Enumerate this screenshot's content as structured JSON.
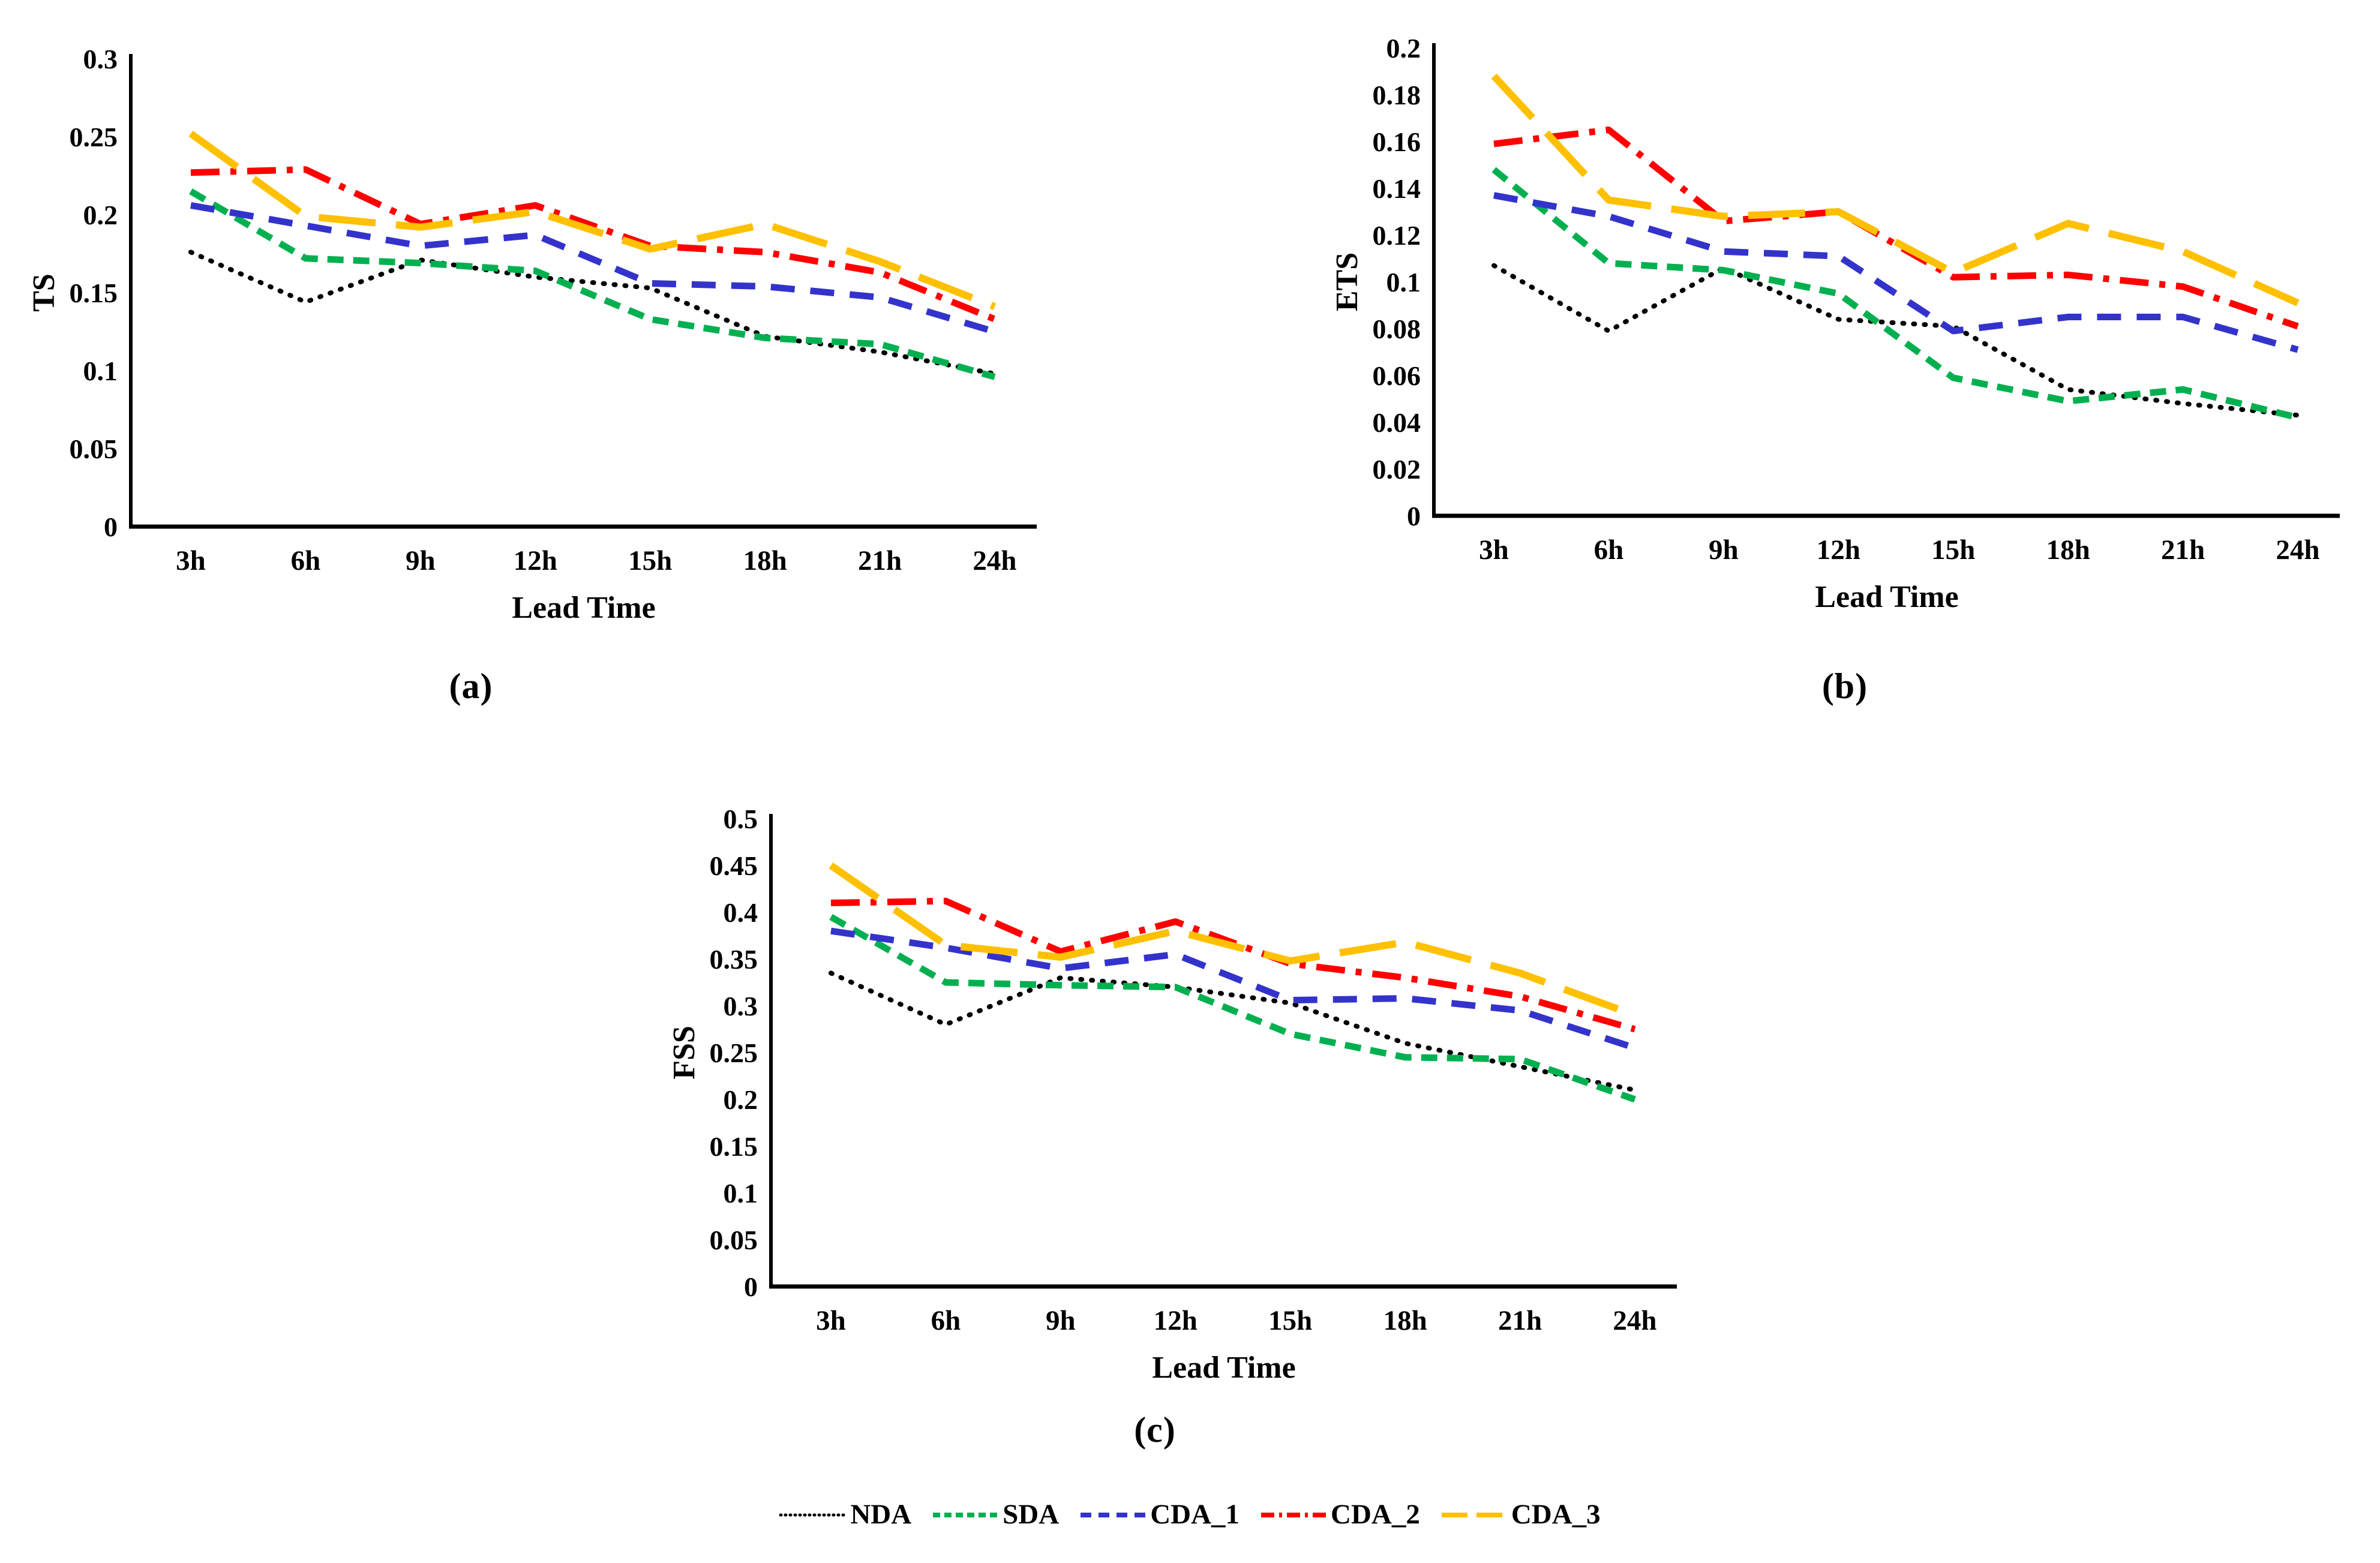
{
  "figure": {
    "background": "#FFFFFF",
    "panel_labels": [
      "(a)",
      "(b)",
      "(c)"
    ],
    "legend": [
      {
        "label": "NDA",
        "color": "#000000",
        "line_style": "dotted"
      },
      {
        "label": "SDA",
        "color": "#00B050",
        "line_style": "dash_short"
      },
      {
        "label": "CDA_1",
        "color": "#3333CC",
        "line_style": "dash_medium"
      },
      {
        "label": "CDA_2",
        "color": "#FF0000",
        "line_style": "dash_dot"
      },
      {
        "label": "CDA_3",
        "color": "#FFC000",
        "line_style": "dash_long"
      }
    ]
  },
  "chart_data": [
    {
      "type": "line",
      "panel": "a",
      "title": "",
      "xlabel": "Lead Time",
      "ylabel": "TS",
      "ylim": [
        0,
        0.3
      ],
      "ytick_step": 0.05,
      "grid": false,
      "legend_position": "bottom-shared",
      "categories": [
        "3h",
        "6h",
        "9h",
        "12h",
        "15h",
        "18h",
        "21h",
        "24h"
      ],
      "series": [
        {
          "name": "NDA",
          "color": "#000000",
          "line_style": "dotted",
          "values": [
            0.176,
            0.144,
            0.171,
            0.16,
            0.153,
            0.122,
            0.112,
            0.098
          ]
        },
        {
          "name": "SDA",
          "color": "#00B050",
          "line_style": "dash_short",
          "values": [
            0.215,
            0.172,
            0.169,
            0.164,
            0.133,
            0.121,
            0.117,
            0.096
          ]
        },
        {
          "name": "CDA_1",
          "color": "#3333CC",
          "line_style": "dash_medium",
          "values": [
            0.206,
            0.193,
            0.18,
            0.187,
            0.156,
            0.154,
            0.147,
            0.125
          ]
        },
        {
          "name": "CDA_2",
          "color": "#FF0000",
          "line_style": "dash_dot",
          "values": [
            0.227,
            0.229,
            0.194,
            0.206,
            0.18,
            0.176,
            0.163,
            0.133
          ]
        },
        {
          "name": "CDA_3",
          "color": "#FFC000",
          "line_style": "dash_long",
          "values": [
            0.252,
            0.199,
            0.192,
            0.202,
            0.178,
            0.194,
            0.17,
            0.141
          ]
        }
      ]
    },
    {
      "type": "line",
      "panel": "b",
      "title": "",
      "xlabel": "Lead Time",
      "ylabel": "ETS",
      "ylim": [
        0,
        0.2
      ],
      "ytick_step": 0.02,
      "grid": false,
      "legend_position": "bottom-shared",
      "categories": [
        "3h",
        "6h",
        "9h",
        "12h",
        "15h",
        "18h",
        "21h",
        "24h"
      ],
      "series": [
        {
          "name": "NDA",
          "color": "#000000",
          "line_style": "dotted",
          "values": [
            0.107,
            0.079,
            0.106,
            0.084,
            0.081,
            0.054,
            0.048,
            0.043
          ]
        },
        {
          "name": "SDA",
          "color": "#00B050",
          "line_style": "dash_short",
          "values": [
            0.148,
            0.108,
            0.105,
            0.095,
            0.059,
            0.049,
            0.054,
            0.042
          ]
        },
        {
          "name": "CDA_1",
          "color": "#3333CC",
          "line_style": "dash_medium",
          "values": [
            0.137,
            0.128,
            0.113,
            0.111,
            0.079,
            0.085,
            0.085,
            0.071
          ]
        },
        {
          "name": "CDA_2",
          "color": "#FF0000",
          "line_style": "dash_dot",
          "values": [
            0.159,
            0.165,
            0.126,
            0.13,
            0.102,
            0.103,
            0.098,
            0.081
          ]
        },
        {
          "name": "CDA_3",
          "color": "#FFC000",
          "line_style": "dash_long",
          "values": [
            0.188,
            0.135,
            0.128,
            0.13,
            0.104,
            0.125,
            0.113,
            0.091
          ]
        }
      ]
    },
    {
      "type": "line",
      "panel": "c",
      "title": "",
      "xlabel": "Lead Time",
      "ylabel": "FSS",
      "ylim": [
        0,
        0.5
      ],
      "ytick_step": 0.05,
      "grid": false,
      "legend_position": "bottom-shared",
      "categories": [
        "3h",
        "6h",
        "9h",
        "12h",
        "15h",
        "18h",
        "21h",
        "24h"
      ],
      "series": [
        {
          "name": "NDA",
          "color": "#000000",
          "line_style": "dotted",
          "values": [
            0.335,
            0.28,
            0.33,
            0.32,
            0.303,
            0.26,
            0.235,
            0.21
          ]
        },
        {
          "name": "SDA",
          "color": "#00B050",
          "line_style": "dash_short",
          "values": [
            0.395,
            0.325,
            0.322,
            0.32,
            0.27,
            0.245,
            0.243,
            0.2
          ]
        },
        {
          "name": "CDA_1",
          "color": "#3333CC",
          "line_style": "dash_medium",
          "values": [
            0.38,
            0.362,
            0.34,
            0.355,
            0.306,
            0.308,
            0.295,
            0.255
          ]
        },
        {
          "name": "CDA_2",
          "color": "#FF0000",
          "line_style": "dash_dot",
          "values": [
            0.41,
            0.412,
            0.358,
            0.39,
            0.345,
            0.33,
            0.31,
            0.275
          ]
        },
        {
          "name": "CDA_3",
          "color": "#FFC000",
          "line_style": "dash_long",
          "values": [
            0.45,
            0.365,
            0.352,
            0.38,
            0.348,
            0.368,
            0.335,
            0.29
          ]
        }
      ]
    }
  ]
}
